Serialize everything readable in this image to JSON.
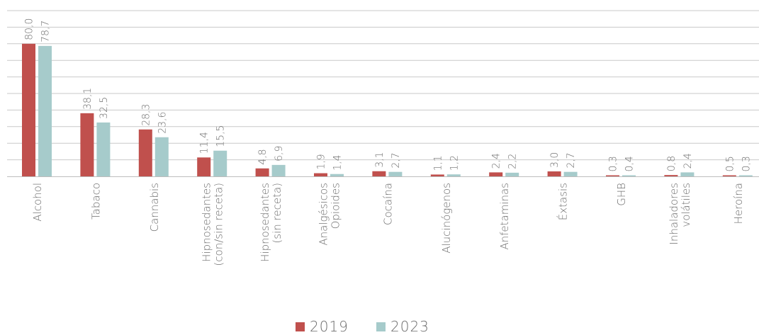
{
  "chart_data": {
    "type": "bar",
    "title": "",
    "xlabel": "",
    "ylabel": "",
    "ylim": [
      0,
      100
    ],
    "grid": true,
    "legend_placement": "bottom-center",
    "categories": [
      [
        "Alcohol"
      ],
      [
        "Tabaco"
      ],
      [
        "Cannabis"
      ],
      [
        "Hipnosedantes",
        "(con/sin receta)"
      ],
      [
        "Hipnosedantes",
        "(sin receta)"
      ],
      [
        "Analgésicos",
        "Opioides"
      ],
      [
        "Cocaína"
      ],
      [
        "Alucinógenos"
      ],
      [
        "Anfetaminas"
      ],
      [
        "Éxtasis"
      ],
      [
        "GHB"
      ],
      [
        "Inhaladores",
        "volátiles"
      ],
      [
        "Heroína"
      ]
    ],
    "series": [
      {
        "name": "2019",
        "color": "#c0504d",
        "values": [
          80.0,
          38.1,
          28.3,
          11.4,
          4.8,
          1.9,
          3.1,
          1.1,
          2.4,
          3.0,
          0.3,
          0.8,
          0.5
        ],
        "labels": [
          "80,0",
          "38,1",
          "28,3",
          "11,4",
          "4,8",
          "1,9",
          "3,1",
          "1,1",
          "2,4",
          "3,0",
          "0,3",
          "0,8",
          "0,5"
        ]
      },
      {
        "name": "2023",
        "color": "#a6cbcb",
        "values": [
          78.7,
          32.5,
          23.6,
          15.5,
          6.9,
          1.4,
          2.7,
          1.2,
          2.2,
          2.7,
          0.4,
          2.4,
          0.3
        ],
        "labels": [
          "78,7",
          "32,5",
          "23,6",
          "15,5",
          "6,9",
          "1,4",
          "2,7",
          "1,2",
          "2,2",
          "2,7",
          "0,4",
          "2,4",
          "0,3"
        ]
      }
    ]
  }
}
